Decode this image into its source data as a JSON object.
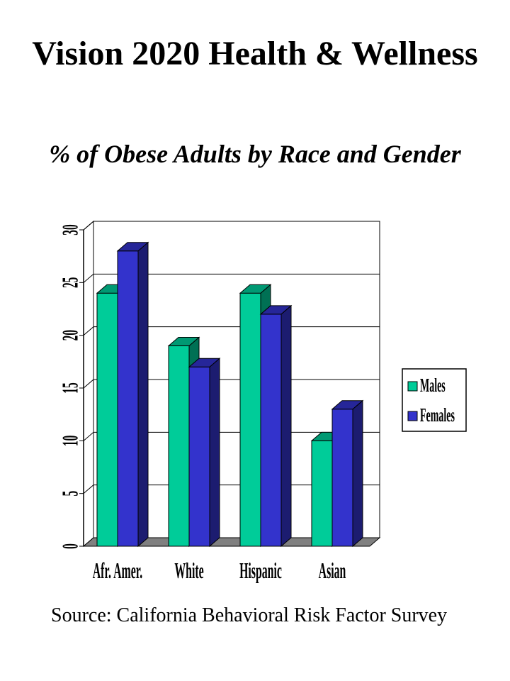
{
  "title": "Vision 2020 Health & Wellness",
  "subtitle": "% of Obese Adults by Race and Gender",
  "source": "Source: California Behavioral Risk Factor Survey",
  "chart_data": {
    "type": "bar",
    "style": "3d-clustered-column",
    "categories": [
      "Afr. Amer.",
      "White",
      "Hispanic",
      "Asian"
    ],
    "series": [
      {
        "name": "Males",
        "values": [
          24,
          19,
          24,
          10
        ],
        "color": "#00cc99"
      },
      {
        "name": "Females",
        "values": [
          28,
          17,
          22,
          13
        ],
        "color": "#3333cc"
      }
    ],
    "ylim": [
      0,
      30
    ],
    "yticks": [
      0,
      5,
      10,
      15,
      20,
      25,
      30
    ],
    "grid": true,
    "legend_position": "right"
  }
}
